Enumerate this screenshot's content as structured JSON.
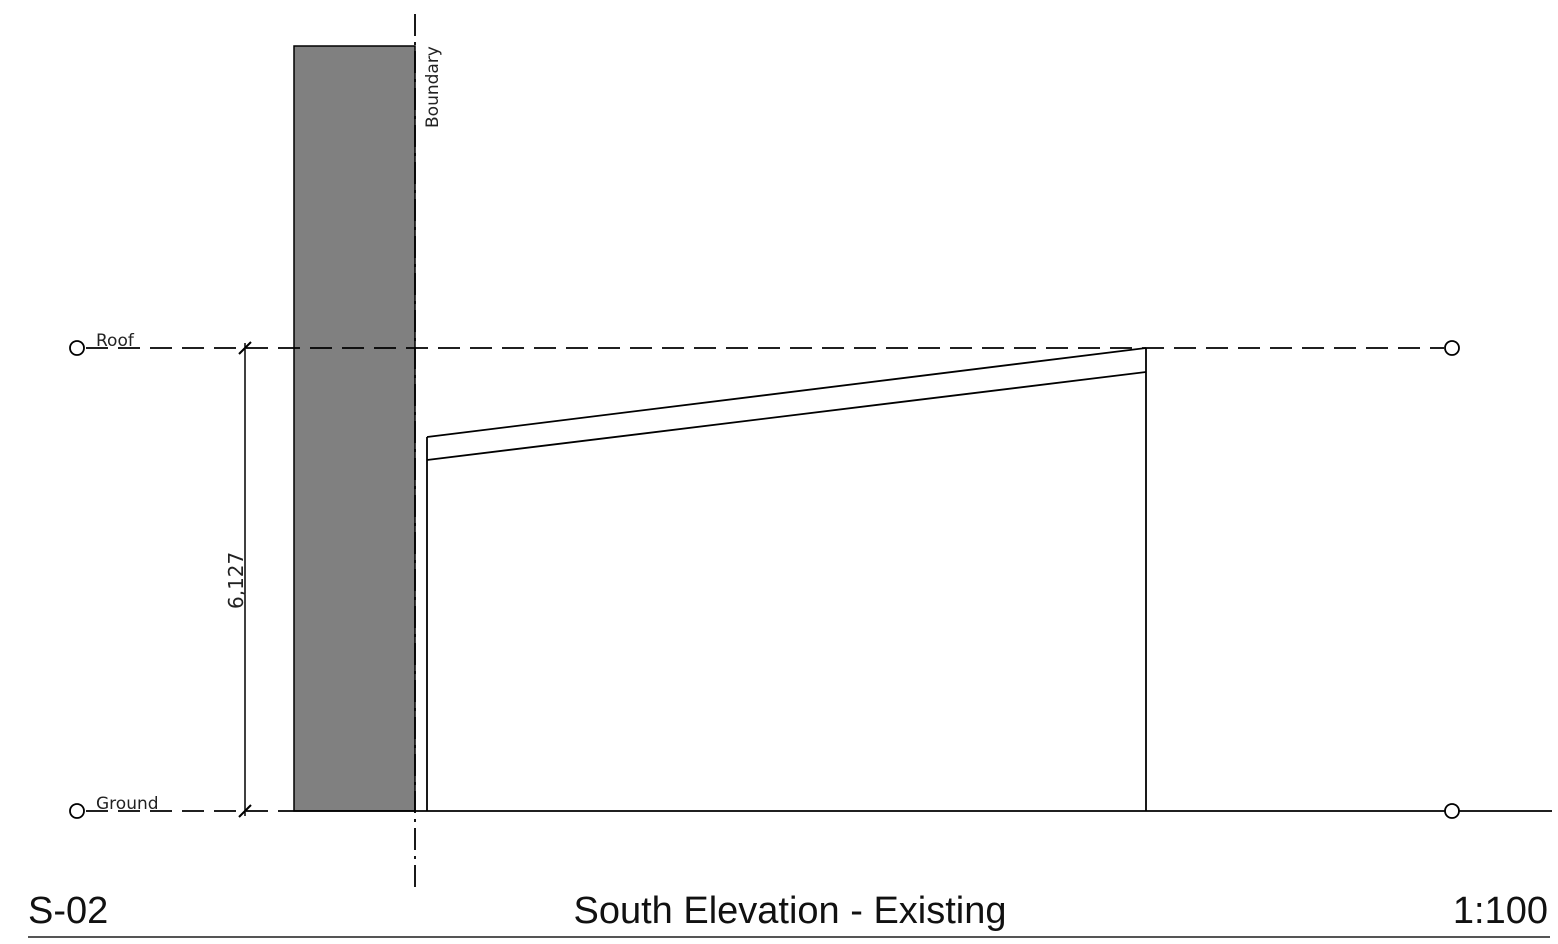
{
  "drawing": {
    "levels": {
      "roof_label": "Roof",
      "ground_label": "Ground"
    },
    "boundary_label": "Boundary",
    "dimension_label": "6,127",
    "colors": {
      "wall_fill": "#808080",
      "line": "#000000"
    }
  },
  "title_block": {
    "sheet_number": "S-02",
    "view_name": "South Elevation - Existing",
    "scale": "1:100"
  }
}
